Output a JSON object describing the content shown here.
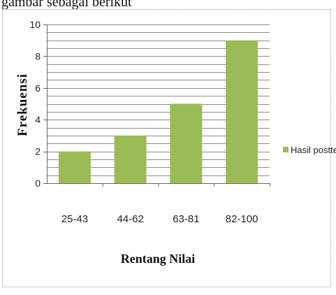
{
  "top_fragment_text": "gambar sebagai berikut",
  "chart_data": {
    "type": "bar",
    "categories": [
      "25-43",
      "44-62",
      "63-81",
      "82-100"
    ],
    "series": [
      {
        "name": "Hasil posttest",
        "values": [
          2,
          3,
          5,
          9
        ],
        "color": "#9bbb59"
      }
    ],
    "title": "",
    "xlabel": "Rentang Nilai",
    "ylabel": "Frekuensi",
    "ylim": [
      0,
      10
    ],
    "yticks": [
      0,
      2,
      4,
      6,
      8,
      10
    ],
    "grid": "horizontal lines at every 0.5 units",
    "legend_position": "right"
  }
}
